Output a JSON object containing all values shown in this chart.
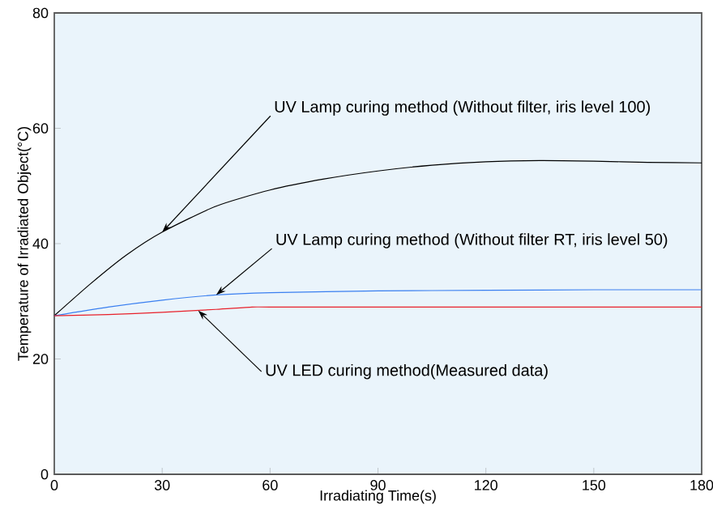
{
  "chart_data": {
    "type": "line",
    "xlabel": "Irradiating Time(s)",
    "ylabel": "Temperature of Irradiated Object(°C)",
    "xlim": [
      0,
      180
    ],
    "xticks": [
      0,
      30,
      60,
      90,
      120,
      150,
      180
    ],
    "ylim": [
      0,
      80
    ],
    "yticks": [
      0,
      20,
      40,
      60,
      80
    ],
    "grid": false,
    "marker": "none",
    "line_style": "solid",
    "series": [
      {
        "color": "#000000",
        "x": [
          0,
          10,
          20,
          30,
          45,
          60,
          75,
          90,
          105,
          120,
          135,
          150,
          165,
          180
        ],
        "values": [
          27.5,
          33,
          38,
          42,
          46.5,
          49.3,
          51.2,
          52.6,
          53.6,
          54.2,
          54.4,
          54.3,
          54.1,
          54
        ]
      },
      {
        "color": "#3a7ff0",
        "x": [
          0,
          15,
          30,
          45,
          60,
          90,
          120,
          150,
          180
        ],
        "values": [
          27.5,
          29,
          30.2,
          31.1,
          31.5,
          31.8,
          31.9,
          32,
          32
        ]
      },
      {
        "color": "#e8202a",
        "x": [
          0,
          15,
          30,
          45,
          55,
          60,
          90,
          120,
          150,
          180
        ],
        "values": [
          27.5,
          27.7,
          28.1,
          28.6,
          29,
          29,
          29,
          29,
          29,
          29
        ]
      }
    ],
    "annotations": [
      {
        "text": "UV Lamp curing method (Without filter, iris level 100)",
        "x": 30,
        "y": 42
      },
      {
        "text": "UV Lamp curing method (Without filter RT, iris level 50)",
        "x": 45,
        "y": 31.1
      },
      {
        "text": "UV LED curing method(Measured data)",
        "x": 40,
        "y": 28.4
      }
    ]
  }
}
